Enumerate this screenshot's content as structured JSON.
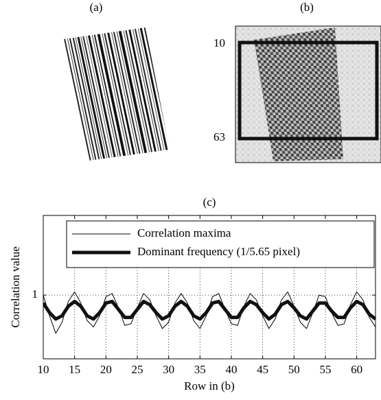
{
  "panel_a": {
    "label": "(a)"
  },
  "panel_b": {
    "label": "(b)",
    "rows": [
      10,
      63
    ]
  },
  "chart_data": {
    "type": "line",
    "title": "(c)",
    "x_label": "Row in (b)",
    "y_label": "Correlation value",
    "x": [
      10,
      11,
      12,
      13,
      14,
      15,
      16,
      17,
      18,
      19,
      20,
      21,
      22,
      23,
      24,
      25,
      26,
      27,
      28,
      29,
      30,
      31,
      32,
      33,
      34,
      35,
      36,
      37,
      38,
      39,
      40,
      41,
      42,
      43,
      44,
      45,
      46,
      47,
      48,
      49,
      50,
      51,
      52,
      53,
      54,
      55,
      56,
      57,
      58,
      59,
      60,
      61,
      62,
      63
    ],
    "series": [
      {
        "name": "Correlation maxima",
        "color": "#000000",
        "width": 1,
        "values": [
          1.0,
          0.87,
          0.76,
          0.83,
          0.96,
          1.02,
          0.95,
          0.84,
          0.8,
          0.87,
          0.99,
          1.01,
          0.92,
          0.81,
          0.82,
          0.92,
          1.01,
          0.97,
          0.87,
          0.79,
          0.83,
          0.95,
          1.01,
          0.95,
          0.84,
          0.79,
          0.87,
          0.99,
          1.01,
          0.91,
          0.82,
          0.81,
          0.93,
          1.01,
          0.97,
          0.87,
          0.79,
          0.85,
          0.97,
          1.02,
          0.93,
          0.83,
          0.79,
          0.89,
          1.0,
          0.99,
          0.89,
          0.81,
          0.82,
          0.94,
          1.02,
          0.97,
          0.86,
          0.8
        ]
      },
      {
        "name": "Dominant frequency (1/5.65 pixel)",
        "color": "#111111",
        "width": 5,
        "values": [
          0.95,
          0.89,
          0.85,
          0.87,
          0.93,
          0.96,
          0.93,
          0.87,
          0.85,
          0.89,
          0.95,
          0.96,
          0.91,
          0.86,
          0.86,
          0.91,
          0.96,
          0.94,
          0.89,
          0.85,
          0.87,
          0.93,
          0.96,
          0.93,
          0.87,
          0.85,
          0.89,
          0.95,
          0.96,
          0.91,
          0.86,
          0.86,
          0.92,
          0.96,
          0.94,
          0.89,
          0.85,
          0.88,
          0.94,
          0.96,
          0.92,
          0.87,
          0.85,
          0.9,
          0.95,
          0.95,
          0.9,
          0.86,
          0.86,
          0.92,
          0.96,
          0.94,
          0.88,
          0.85
        ]
      }
    ],
    "xlim": [
      10,
      63
    ],
    "ylim": [
      0.6,
      1.5
    ],
    "xticks": [
      10,
      15,
      20,
      25,
      30,
      35,
      40,
      45,
      50,
      55,
      60
    ],
    "yticks": [
      1
    ],
    "grid": true,
    "legend": "top"
  }
}
